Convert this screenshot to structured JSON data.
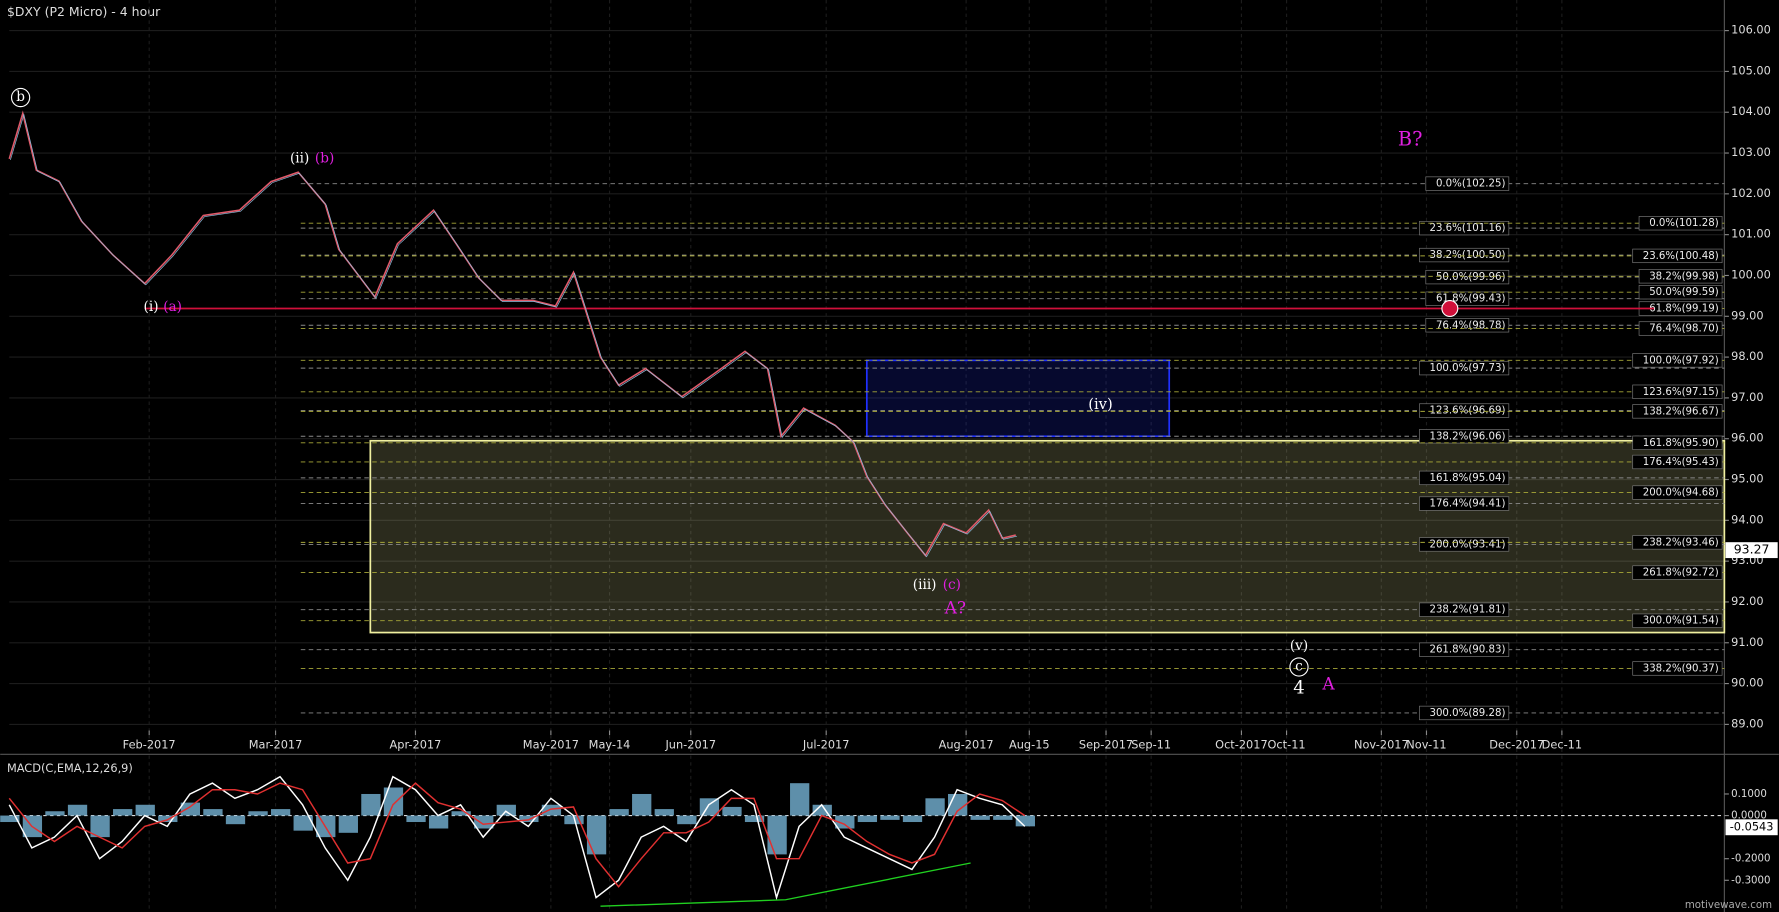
{
  "chart_data": [
    {
      "type": "line",
      "title": "$DXY (P2 Micro) - 4 hour",
      "color": "#e05a6a",
      "x": [
        0,
        3,
        6,
        11,
        16,
        23,
        30,
        36,
        43,
        51,
        58,
        64,
        70,
        73,
        81,
        86,
        94,
        99,
        104,
        109,
        116,
        121,
        125,
        127,
        131,
        135,
        141,
        149,
        156,
        163,
        168,
        171,
        176,
        183,
        187,
        190,
        194,
        199,
        203,
        207,
        212,
        217,
        220,
        223
      ],
      "values": [
        102.86,
        103.97,
        102.58,
        102.31,
        101.33,
        100.5,
        99.8,
        100.5,
        101.47,
        101.6,
        102.3,
        102.53,
        101.75,
        100.64,
        99.47,
        100.78,
        101.6,
        100.78,
        99.94,
        99.39,
        99.39,
        99.25,
        100.08,
        99.39,
        98.0,
        97.31,
        97.72,
        97.03,
        97.58,
        98.14,
        97.72,
        96.06,
        96.75,
        96.33,
        95.92,
        95.08,
        94.39,
        93.69,
        93.14,
        93.92,
        93.69,
        94.25,
        93.56,
        93.64
      ],
      "xlim": [
        0,
        380
      ],
      "xticks": [
        {
          "value": 31,
          "label": "Feb-2017"
        },
        {
          "value": 59,
          "label": "Mar-2017"
        },
        {
          "value": 90,
          "label": "Apr-2017"
        },
        {
          "value": 120,
          "label": "May-2017"
        },
        {
          "value": 133,
          "label": "May-14"
        },
        {
          "value": 151,
          "label": "Jun-2017"
        },
        {
          "value": 181,
          "label": "Jul-2017"
        },
        {
          "value": 212,
          "label": "Aug-2017"
        },
        {
          "value": 226,
          "label": "Aug-15"
        },
        {
          "value": 243,
          "label": "Sep-2017"
        },
        {
          "value": 253,
          "label": "Sep-11"
        },
        {
          "value": 273,
          "label": "Oct-2017"
        },
        {
          "value": 283,
          "label": "Oct-11"
        },
        {
          "value": 304,
          "label": "Nov-2017"
        },
        {
          "value": 314,
          "label": "Nov-11"
        },
        {
          "value": 334,
          "label": "Dec-2017"
        },
        {
          "value": 344,
          "label": "Dec-11"
        }
      ],
      "ylim": [
        88.85,
        106.75
      ],
      "yticks": [
        {
          "value": 89,
          "label": "89.00"
        },
        {
          "value": 90,
          "label": "90.00"
        },
        {
          "value": 91,
          "label": "91.00"
        },
        {
          "value": 92,
          "label": "92.00"
        },
        {
          "value": 93,
          "label": "93.00"
        },
        {
          "value": 94,
          "label": "94.00"
        },
        {
          "value": 95,
          "label": "95.00"
        },
        {
          "value": 96,
          "label": "96.00"
        },
        {
          "value": 97,
          "label": "97.00"
        },
        {
          "value": 98,
          "label": "98.00"
        },
        {
          "value": 99,
          "label": "99.00"
        },
        {
          "value": 100,
          "label": "100.00"
        },
        {
          "value": 101,
          "label": "101.00"
        },
        {
          "value": 102,
          "label": "102.00"
        },
        {
          "value": 103,
          "label": "103.00"
        },
        {
          "value": 104,
          "label": "104.00"
        },
        {
          "value": 105,
          "label": "105.00"
        },
        {
          "value": 106,
          "label": "106.00"
        }
      ],
      "grid": true,
      "last_price": 93.27,
      "red_level": {
        "value": 99.19,
        "color": "#d0103a"
      },
      "zones": [
        {
          "x": [
            190,
            257
          ],
          "range": [
            96.06,
            97.92
          ],
          "color": "#2030ff"
        },
        {
          "x": [
            80,
            380
          ],
          "range": [
            91.25,
            95.95
          ],
          "color": "#f0f0a0"
        }
      ],
      "fib_levels": [
        {
          "color": "#8a8a8a",
          "levels": [
            {
              "value": 102.25,
              "label": "0.0%(102.25)"
            },
            {
              "value": 101.16,
              "label": "23.6%(101.16)"
            },
            {
              "value": 100.5,
              "label": "38.2%(100.50)"
            },
            {
              "value": 99.96,
              "label": "50.0%(99.96)"
            },
            {
              "value": 99.43,
              "label": "61.8%(99.43)"
            },
            {
              "value": 98.78,
              "label": "76.4%(98.78)"
            },
            {
              "value": 97.73,
              "label": "100.0%(97.73)"
            },
            {
              "value": 96.69,
              "label": "123.6%(96.69)"
            },
            {
              "value": 96.06,
              "label": "138.2%(96.06)"
            },
            {
              "value": 95.04,
              "label": "161.8%(95.04)"
            },
            {
              "value": 94.41,
              "label": "176.4%(94.41)"
            },
            {
              "value": 93.41,
              "label": "200.0%(93.41)"
            },
            {
              "value": 91.81,
              "label": "238.2%(91.81)"
            },
            {
              "value": 90.83,
              "label": "261.8%(90.83)"
            },
            {
              "value": 89.28,
              "label": "300.0%(89.28)"
            }
          ]
        },
        {
          "color": "#a8a838",
          "levels": [
            {
              "value": 101.28,
              "label": "0.0%(101.28)"
            },
            {
              "value": 100.48,
              "label": "23.6%(100.48)"
            },
            {
              "value": 99.98,
              "label": "38.2%(99.98)"
            },
            {
              "value": 99.59,
              "label": "50.0%(99.59)"
            },
            {
              "value": 99.19,
              "label": "61.8%(99.19)"
            },
            {
              "value": 98.7,
              "label": "76.4%(98.70)"
            },
            {
              "value": 97.92,
              "label": "100.0%(97.92)"
            },
            {
              "value": 97.15,
              "label": "123.6%(97.15)"
            },
            {
              "value": 96.67,
              "label": "138.2%(96.67)"
            },
            {
              "value": 95.9,
              "label": "161.8%(95.90)"
            },
            {
              "value": 95.43,
              "label": "176.4%(95.43)"
            },
            {
              "value": 94.68,
              "label": "200.0%(94.68)"
            },
            {
              "value": 93.46,
              "label": "238.2%(93.46)"
            },
            {
              "value": 92.72,
              "label": "261.8%(92.72)"
            },
            {
              "value": 91.54,
              "label": "300.0%(91.54)"
            },
            {
              "value": 90.37,
              "label": "338.2%(90.37)"
            }
          ]
        }
      ],
      "annotations": [
        {
          "text": "b",
          "color": "#ffffff",
          "circled": true
        },
        {
          "text": "(ii)",
          "color": "#ffffff"
        },
        {
          "text": "(b)",
          "color": "#e020e0"
        },
        {
          "text": "(i)",
          "color": "#ffffff"
        },
        {
          "text": "(a)",
          "color": "#e020e0"
        },
        {
          "text": "B?",
          "color": "#e020e0"
        },
        {
          "text": "(iv)",
          "color": "#ffffff"
        },
        {
          "text": "(iii)",
          "color": "#ffffff"
        },
        {
          "text": "(c)",
          "color": "#e020e0"
        },
        {
          "text": "A?",
          "color": "#e020e0"
        },
        {
          "text": "(v)",
          "color": "#ffffff"
        },
        {
          "text": "c",
          "color": "#ffffff",
          "circled": true
        },
        {
          "text": "4",
          "color": "#ffffff"
        },
        {
          "text": "A",
          "color": "#e020e0"
        }
      ],
      "watermark": "motivewave.com"
    },
    {
      "type": "macd",
      "title": "MACD(C,EMA,12,26,9)",
      "x": [
        0,
        5,
        10,
        15,
        20,
        25,
        30,
        35,
        40,
        45,
        50,
        55,
        60,
        65,
        70,
        75,
        80,
        85,
        90,
        95,
        100,
        105,
        110,
        115,
        120,
        125,
        130,
        135,
        140,
        145,
        150,
        155,
        160,
        165,
        170,
        175,
        180,
        185,
        190,
        195,
        200,
        205,
        210,
        215,
        220,
        225
      ],
      "lines": [
        {
          "color": "#ffffff",
          "values": [
            0.05,
            -0.15,
            -0.1,
            0.0,
            -0.2,
            -0.12,
            0.0,
            -0.05,
            0.1,
            0.15,
            0.08,
            0.12,
            0.18,
            0.05,
            -0.15,
            -0.3,
            -0.1,
            0.18,
            0.12,
            0.0,
            0.05,
            -0.1,
            0.02,
            -0.05,
            0.08,
            0.0,
            -0.38,
            -0.3,
            -0.1,
            -0.05,
            -0.12,
            0.05,
            0.12,
            0.05,
            -0.38,
            -0.05,
            0.05,
            -0.1,
            -0.15,
            -0.2,
            -0.25,
            -0.1,
            0.12,
            0.08,
            0.05,
            -0.05
          ]
        },
        {
          "color": "#e03030",
          "values": [
            0.08,
            -0.05,
            -0.12,
            -0.05,
            -0.1,
            -0.15,
            -0.05,
            -0.02,
            0.04,
            0.12,
            0.12,
            0.1,
            0.15,
            0.12,
            -0.05,
            -0.22,
            -0.2,
            0.05,
            0.15,
            0.06,
            0.03,
            -0.04,
            -0.03,
            -0.02,
            0.03,
            0.04,
            -0.2,
            -0.33,
            -0.2,
            -0.08,
            -0.08,
            -0.03,
            0.08,
            0.08,
            -0.2,
            -0.2,
            0.0,
            -0.04,
            -0.12,
            -0.18,
            -0.22,
            -0.18,
            0.02,
            0.1,
            0.07,
            0.0
          ]
        }
      ],
      "bars": {
        "color": "#6fa8c8",
        "values": [
          -0.03,
          -0.1,
          0.02,
          0.05,
          -0.1,
          0.03,
          0.05,
          -0.03,
          0.06,
          0.03,
          -0.04,
          0.02,
          0.03,
          -0.07,
          -0.1,
          -0.08,
          0.1,
          0.13,
          -0.03,
          -0.06,
          0.02,
          -0.06,
          0.05,
          -0.03,
          0.05,
          -0.04,
          -0.18,
          0.03,
          0.1,
          0.03,
          -0.04,
          0.08,
          0.04,
          -0.03,
          -0.18,
          0.15,
          0.05,
          -0.06,
          -0.03,
          -0.02,
          -0.03,
          0.08,
          0.1,
          -0.02,
          -0.02,
          -0.05
        ]
      },
      "divergence": {
        "color": "#20d020",
        "x": [
          131,
          172,
          213
        ],
        "values": [
          -0.42,
          -0.39,
          -0.22
        ]
      },
      "ylim": [
        -0.447,
        0.268
      ],
      "yticks": [
        {
          "value": 0.1,
          "label": "0.1000"
        },
        {
          "value": 0,
          "label": "0.0000"
        },
        {
          "value": -0.2,
          "label": "-0.2000"
        },
        {
          "value": -0.3,
          "label": "-0.3000"
        }
      ],
      "last_value": {
        "value": -0.0543,
        "label": "-0.0543"
      }
    }
  ]
}
